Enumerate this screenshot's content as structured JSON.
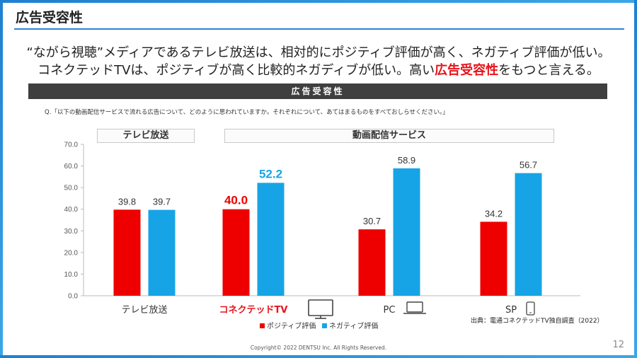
{
  "page": {
    "title": "広告受容性",
    "headline_line1": "“ながら視聴”メディアであるテレビ放送は、相対的にポジティブ評価が高く、ネガティブ評価が低い。",
    "headline_line2_pre": "コネクテッドTVは、ポジティブが高く比較的ネガディブが低い。高い",
    "headline_line2_highlight": "広告受容性",
    "headline_line2_post": "をもつと言える。",
    "section_bar": "広告受容性",
    "question": "Q.「以下の動画配信サービスで流れる広告について、どのように思われていますか。それぞれについて、あてはまるものをすべておしらせください。」",
    "group_left": "テレビ放送",
    "group_right": "動画配信サービス",
    "source": "出典：電通コネクテッドTV独自調査（2022）",
    "copyright": "Copyright© 2022 DENTSU Inc. All Rights Reserved.",
    "page_number": "12"
  },
  "chart_data": {
    "type": "bar",
    "categories": [
      "テレビ放送",
      "コネクテッドTV",
      "PC",
      "SP"
    ],
    "category_icons": [
      "",
      "tv-icon",
      "laptop-icon",
      "smartphone-icon"
    ],
    "highlight_category_index": 1,
    "series": [
      {
        "name": "ポジティブ評価",
        "color": "#ee0000",
        "values": [
          39.8,
          40.0,
          30.7,
          34.2
        ]
      },
      {
        "name": "ネガティブ評価",
        "color": "#17a4e6",
        "values": [
          39.7,
          52.2,
          58.9,
          56.7
        ]
      }
    ],
    "value_labels": [
      [
        "39.8",
        "40.0",
        "30.7",
        "34.2"
      ],
      [
        "39.7",
        "52.2",
        "58.9",
        "56.7"
      ]
    ],
    "ylim": [
      0,
      70
    ],
    "yticks": [
      0,
      10,
      20,
      30,
      40,
      50,
      60,
      70
    ],
    "ytick_labels": [
      "0.0",
      "10.0",
      "20.0",
      "30.0",
      "40.0",
      "50.0",
      "60.0",
      "70.0"
    ],
    "grid": false,
    "legend_position": "bottom"
  }
}
